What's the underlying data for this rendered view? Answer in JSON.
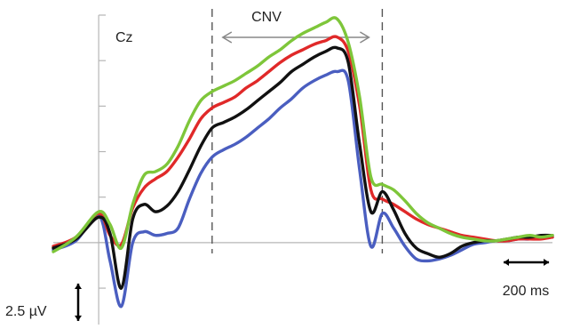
{
  "chart_data": {
    "type": "line",
    "electrode_label": "Cz",
    "window_label": "CNV",
    "scale_amplitude_label": "2.5 µV",
    "scale_time_label": "200 ms",
    "scale_bar": {
      "amplitude_uv": 2.5,
      "time_ms": 200
    },
    "xlabel": "",
    "ylabel": "",
    "xlim_ms": [
      -200,
      2000
    ],
    "ylim_uv": [
      -4.5,
      12.5
    ],
    "cnv_window_ms": [
      500,
      1250
    ],
    "axis_ticks_uv": [
      -2.5,
      0,
      2.5,
      5,
      7.5,
      10,
      12.5
    ],
    "grid": false,
    "legend": "none",
    "x_ms": [
      -200,
      -100,
      0,
      50,
      100,
      150,
      200,
      250,
      300,
      350,
      400,
      450,
      500,
      550,
      600,
      650,
      700,
      750,
      800,
      850,
      900,
      950,
      1000,
      1050,
      1100,
      1150,
      1200,
      1250,
      1300,
      1350,
      1400,
      1450,
      1500,
      1550,
      1600,
      1650,
      1700,
      1750,
      1800,
      1850,
      1900,
      1950,
      2000
    ],
    "series": [
      {
        "color": "#e02929",
        "values": [
          -0.2,
          0.3,
          1.6,
          0.4,
          -0.1,
          1.9,
          3.0,
          3.5,
          3.9,
          4.7,
          5.7,
          6.8,
          7.4,
          7.7,
          8.0,
          8.5,
          8.9,
          9.4,
          9.9,
          10.3,
          10.6,
          10.9,
          11.1,
          11.3,
          10.5,
          7.5,
          2.9,
          2.4,
          2.1,
          1.7,
          1.3,
          1.0,
          0.8,
          0.6,
          0.4,
          0.3,
          0.2,
          0.1,
          0.1,
          0.2,
          0.2,
          0.2,
          0.3
        ]
      },
      {
        "color": "#111111",
        "values": [
          -0.3,
          0.2,
          1.4,
          0.5,
          -2.5,
          1.3,
          2.1,
          1.7,
          2.0,
          2.8,
          4.0,
          5.3,
          6.3,
          6.6,
          6.9,
          7.3,
          7.8,
          8.3,
          8.8,
          9.4,
          9.8,
          10.2,
          10.5,
          10.7,
          9.9,
          5.4,
          1.7,
          2.8,
          1.8,
          0.5,
          -0.3,
          -0.6,
          -0.8,
          -0.6,
          -0.2,
          0.0,
          0.1,
          0.1,
          0.2,
          0.3,
          0.3,
          0.4,
          0.4
        ]
      },
      {
        "color": "#4a5ec0",
        "values": [
          -0.4,
          0.1,
          1.5,
          -1.0,
          -3.5,
          0.0,
          0.6,
          0.4,
          0.5,
          0.8,
          2.4,
          3.8,
          4.7,
          5.1,
          5.4,
          5.8,
          6.3,
          6.8,
          7.4,
          7.9,
          8.5,
          8.9,
          9.2,
          9.4,
          8.9,
          4.0,
          -0.2,
          1.6,
          0.8,
          -0.2,
          -0.9,
          -1.0,
          -0.9,
          -0.7,
          -0.4,
          -0.1,
          0.0,
          0.1,
          0.1,
          0.2,
          0.2,
          0.3,
          0.3
        ]
      },
      {
        "color": "#7ec63a",
        "values": [
          -0.5,
          0.3,
          1.7,
          1.0,
          -0.3,
          2.1,
          3.7,
          3.9,
          4.3,
          5.3,
          6.7,
          7.8,
          8.3,
          8.6,
          8.9,
          9.3,
          9.7,
          10.2,
          10.6,
          11.1,
          11.5,
          11.8,
          12.1,
          12.3,
          11.0,
          8.0,
          3.6,
          3.2,
          2.9,
          2.3,
          1.6,
          1.1,
          0.8,
          0.5,
          0.3,
          0.2,
          0.1,
          0.1,
          0.2,
          0.3,
          0.4,
          0.3,
          0.4
        ]
      }
    ]
  }
}
